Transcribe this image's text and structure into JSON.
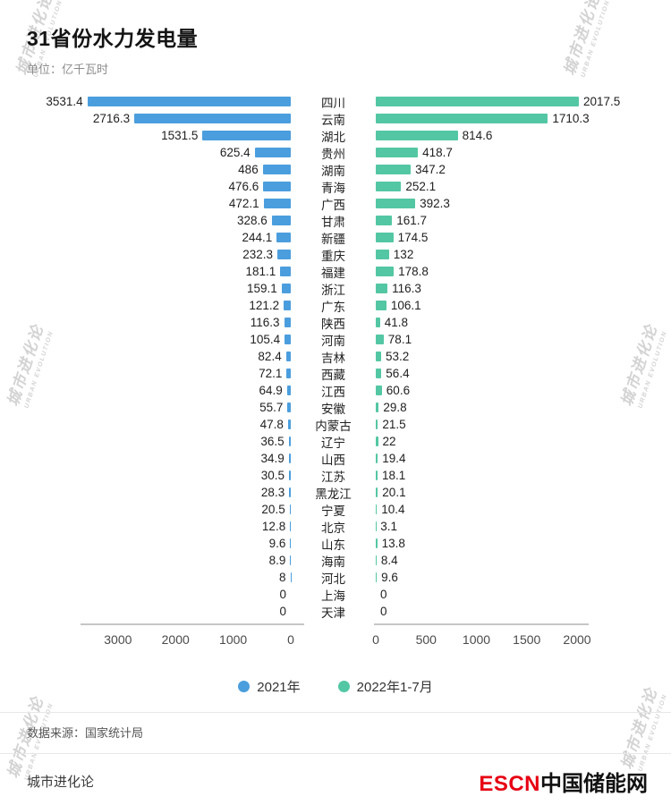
{
  "title": "31省份水力发电量",
  "subtitle": "单位：亿千瓦时",
  "watermark": {
    "line1": "城市进化论",
    "line2": "URBAN EVOLUTION"
  },
  "legend": {
    "items": [
      {
        "label": "2021年",
        "color": "#4b9edd"
      },
      {
        "label": "2022年1-7月",
        "color": "#53c7a3"
      }
    ]
  },
  "source": "数据来源：国家统计局",
  "footer": {
    "brand_left": "城市进化论",
    "logo_red": "ESCN",
    "logo_black": "中国储能网"
  },
  "chart_data": {
    "type": "bar",
    "layout": "diverging-horizontal",
    "title": "31省份水力发电量",
    "unit": "亿千瓦时",
    "categories": [
      "四川",
      "云南",
      "湖北",
      "贵州",
      "湖南",
      "青海",
      "广西",
      "甘肃",
      "新疆",
      "重庆",
      "福建",
      "浙江",
      "广东",
      "陕西",
      "河南",
      "吉林",
      "西藏",
      "江西",
      "安徽",
      "内蒙古",
      "辽宁",
      "山西",
      "江苏",
      "黑龙江",
      "宁夏",
      "北京",
      "山东",
      "海南",
      "河北",
      "上海",
      "天津"
    ],
    "series": [
      {
        "name": "2021年",
        "color": "#4b9edd",
        "direction": "left",
        "axis_ticks": [
          3000,
          2000,
          1000,
          0
        ],
        "axis_max": 3650,
        "values": [
          3531.4,
          2716.3,
          1531.5,
          625.4,
          486,
          476.6,
          472.1,
          328.6,
          244.1,
          232.3,
          181.1,
          159.1,
          121.2,
          116.3,
          105.4,
          82.4,
          72.1,
          64.9,
          55.7,
          47.8,
          36.5,
          34.9,
          30.5,
          28.3,
          20.5,
          12.8,
          9.6,
          8.9,
          8,
          0,
          0
        ]
      },
      {
        "name": "2022年1-7月",
        "color": "#53c7a3",
        "direction": "right",
        "axis_ticks": [
          0,
          500,
          1000,
          1500,
          2000
        ],
        "axis_max": 2000,
        "values": [
          2017.5,
          1710.3,
          814.6,
          418.7,
          347.2,
          252.1,
          392.3,
          161.7,
          174.5,
          132,
          178.8,
          116.3,
          106.1,
          41.8,
          78.1,
          53.2,
          56.4,
          60.6,
          29.8,
          21.5,
          22,
          19.4,
          18.1,
          20.1,
          10.4,
          3.1,
          13.8,
          8.4,
          9.6,
          0,
          0
        ]
      }
    ]
  }
}
